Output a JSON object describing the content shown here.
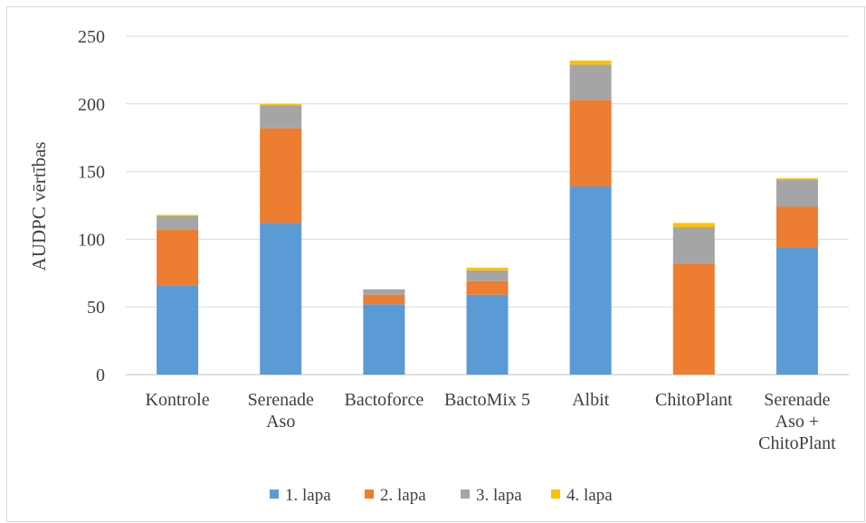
{
  "chart_data": {
    "type": "bar",
    "stacked": true,
    "title": "",
    "xlabel": "",
    "ylabel": "AUDPC vērtības",
    "ylim": [
      0,
      250
    ],
    "yticks": [
      0,
      50,
      100,
      150,
      200,
      250
    ],
    "grid": true,
    "legend_position": "bottom",
    "categories": [
      [
        "Kontrole"
      ],
      [
        "Serenade",
        "Aso"
      ],
      [
        "Bactoforce"
      ],
      [
        "BactoMix 5"
      ],
      [
        "Albit"
      ],
      [
        "ChitoPlant"
      ],
      [
        "Serenade",
        "Aso +",
        "ChitoPlant"
      ]
    ],
    "series": [
      {
        "name": "1. lapa",
        "color": "#5b9bd5",
        "values": [
          66,
          112,
          52,
          59,
          139,
          0,
          94
        ]
      },
      {
        "name": "2. lapa",
        "color": "#ed7d31",
        "values": [
          41,
          70,
          7,
          10,
          64,
          82,
          30
        ]
      },
      {
        "name": "3. lapa",
        "color": "#a5a5a5",
        "values": [
          10,
          17,
          4,
          8,
          26,
          27,
          20
        ]
      },
      {
        "name": "4. lapa",
        "color": "#ffc000",
        "values": [
          1,
          1,
          0,
          2,
          3,
          3,
          1
        ]
      }
    ],
    "colors": {
      "axis_text": "#404040",
      "grid": "#d9d9d9"
    }
  }
}
